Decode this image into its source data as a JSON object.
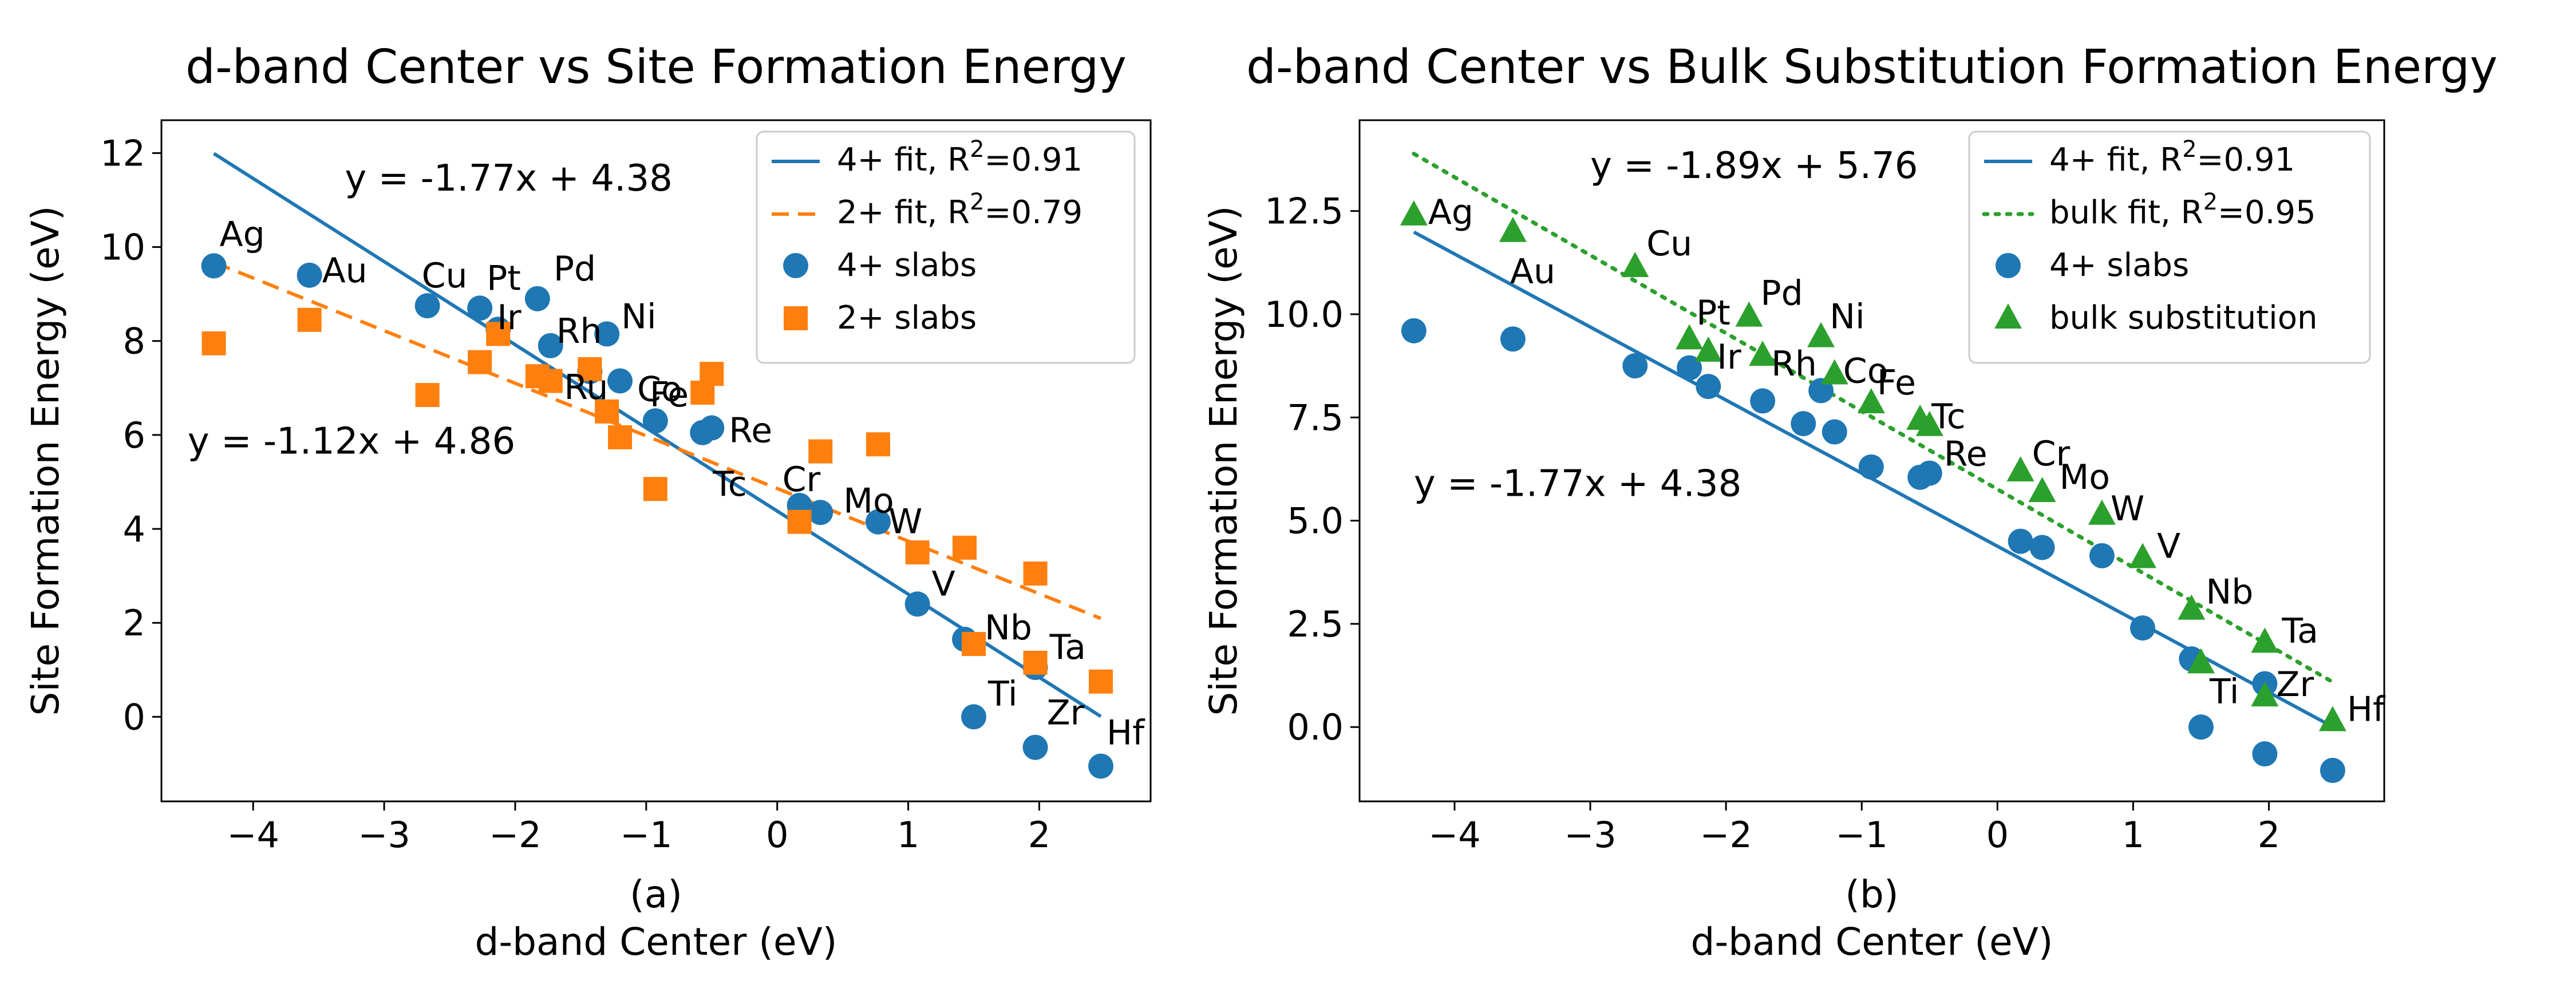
{
  "chart_data": [
    {
      "type": "scatter",
      "title": "d-band Center vs Site Formation Energy",
      "xlabel": "d-band Center (eV)",
      "ylabel": "Site Formation Energy (eV)",
      "sublabel": "(a)",
      "xlim": [
        -4.7,
        2.85
      ],
      "ylim": [
        -1.8,
        12.7
      ],
      "xticks": [
        -4,
        -3,
        -2,
        -1,
        0,
        1,
        2
      ],
      "xtick_labels": [
        "−4",
        "−3",
        "−2",
        "−1",
        "0",
        "1",
        "2"
      ],
      "yticks": [
        0,
        2,
        4,
        6,
        8,
        10,
        12
      ],
      "ytick_labels": [
        "0",
        "2",
        "4",
        "6",
        "8",
        "10",
        "12"
      ],
      "legend_position": "top-right",
      "series": [
        {
          "name": "4+ slabs",
          "marker": "circle",
          "color": "#1f77b4",
          "points": [
            {
              "label": "Ag",
              "x": -4.3,
              "y": 9.6
            },
            {
              "label": "Au",
              "x": -3.57,
              "y": 9.4
            },
            {
              "label": "Cu",
              "x": -2.67,
              "y": 8.75
            },
            {
              "label": "Pt",
              "x": -2.27,
              "y": 8.7
            },
            {
              "label": "Pd",
              "x": -1.83,
              "y": 8.9
            },
            {
              "label": "Ir",
              "x": -2.13,
              "y": 8.25
            },
            {
              "label": "Rh",
              "x": -1.73,
              "y": 7.9
            },
            {
              "label": "Ni",
              "x": -1.3,
              "y": 8.15
            },
            {
              "label": "Ru",
              "x": -1.43,
              "y": 7.35
            },
            {
              "label": "Co",
              "x": -1.2,
              "y": 7.15
            },
            {
              "label": "Fe",
              "x": -0.93,
              "y": 6.3
            },
            {
              "label": "Tc",
              "x": -0.57,
              "y": 6.05
            },
            {
              "label": "Re",
              "x": -0.5,
              "y": 6.15
            },
            {
              "label": "Cr",
              "x": 0.17,
              "y": 4.5
            },
            {
              "label": "Mo",
              "x": 0.33,
              "y": 4.35
            },
            {
              "label": "W",
              "x": 0.77,
              "y": 4.15
            },
            {
              "label": "V",
              "x": 1.07,
              "y": 2.4
            },
            {
              "label": "Nb",
              "x": 1.43,
              "y": 1.65
            },
            {
              "label": "Ti",
              "x": 1.5,
              "y": 0.0
            },
            {
              "label": "Ta",
              "x": 1.97,
              "y": 1.05
            },
            {
              "label": "Zr",
              "x": 1.97,
              "y": -0.65
            },
            {
              "label": "Hf",
              "x": 2.47,
              "y": -1.05
            }
          ]
        },
        {
          "name": "2+ slabs",
          "marker": "square",
          "color": "#ff7f0e",
          "points": [
            {
              "x": -4.3,
              "y": 7.95
            },
            {
              "x": -3.57,
              "y": 8.45
            },
            {
              "x": -2.67,
              "y": 6.85
            },
            {
              "x": -2.27,
              "y": 7.55
            },
            {
              "x": -2.13,
              "y": 8.15
            },
            {
              "x": -1.83,
              "y": 7.25
            },
            {
              "x": -1.73,
              "y": 7.15
            },
            {
              "x": -1.43,
              "y": 7.4
            },
            {
              "x": -1.3,
              "y": 6.5
            },
            {
              "x": -1.2,
              "y": 5.95
            },
            {
              "x": -0.93,
              "y": 4.85
            },
            {
              "x": -0.57,
              "y": 6.9
            },
            {
              "x": -0.5,
              "y": 7.3
            },
            {
              "x": 0.17,
              "y": 4.15
            },
            {
              "x": 0.33,
              "y": 5.65
            },
            {
              "x": 0.77,
              "y": 5.8
            },
            {
              "x": 1.07,
              "y": 3.5
            },
            {
              "x": 1.43,
              "y": 3.6
            },
            {
              "x": 1.5,
              "y": 1.55
            },
            {
              "x": 1.97,
              "y": 1.15
            },
            {
              "x": 1.97,
              "y": 3.05
            },
            {
              "x": 2.47,
              "y": 0.75
            }
          ]
        }
      ],
      "fits": [
        {
          "name": "4+ fit, R²=0.91",
          "legend_main": "4+ fit, R",
          "legend_sup": "2",
          "legend_tail": "=0.91",
          "slope": -1.77,
          "intercept": 4.38,
          "x_range": [
            -4.3,
            2.47
          ],
          "color": "#1f77b4",
          "style": "solid"
        },
        {
          "name": "2+ fit, R²=0.79",
          "legend_main": "2+ fit, R",
          "legend_sup": "2",
          "legend_tail": "=0.79",
          "slope": -1.12,
          "intercept": 4.86,
          "x_range": [
            -4.3,
            2.47
          ],
          "color": "#ff7f0e",
          "style": "dashed"
        }
      ],
      "annotations": [
        {
          "text": "y = -1.77x + 4.38",
          "x": -3.3,
          "y": 11.2
        },
        {
          "text": "y = -1.12x + 4.86",
          "x": -4.5,
          "y": 5.6
        }
      ]
    },
    {
      "type": "scatter",
      "title": "d-band Center vs Bulk Substitution Formation Energy",
      "xlabel": "d-band Center (eV)",
      "ylabel": "Site Formation Energy (eV)",
      "sublabel": "(b)",
      "xlim": [
        -4.7,
        2.85
      ],
      "ylim": [
        -1.8,
        14.7
      ],
      "xticks": [
        -4,
        -3,
        -2,
        -1,
        0,
        1,
        2
      ],
      "xtick_labels": [
        "−4",
        "−3",
        "−2",
        "−1",
        "0",
        "1",
        "2"
      ],
      "yticks": [
        0,
        2.5,
        5,
        7.5,
        10,
        12.5
      ],
      "ytick_labels": [
        "0.0",
        "2.5",
        "5.0",
        "7.5",
        "10.0",
        "12.5"
      ],
      "legend_position": "top-right",
      "series": [
        {
          "name": "4+ slabs",
          "marker": "circle",
          "color": "#1f77b4",
          "points": [
            {
              "x": -4.3,
              "y": 9.6
            },
            {
              "x": -3.57,
              "y": 9.4
            },
            {
              "x": -2.67,
              "y": 8.75
            },
            {
              "x": -2.27,
              "y": 8.7
            },
            {
              "x": -2.13,
              "y": 8.25
            },
            {
              "x": -1.73,
              "y": 7.9
            },
            {
              "x": -1.43,
              "y": 7.35
            },
            {
              "x": -1.3,
              "y": 8.15
            },
            {
              "x": -1.2,
              "y": 7.15
            },
            {
              "x": -0.93,
              "y": 6.3
            },
            {
              "x": -0.57,
              "y": 6.05
            },
            {
              "x": -0.5,
              "y": 6.15
            },
            {
              "x": 0.17,
              "y": 4.5
            },
            {
              "x": 0.33,
              "y": 4.35
            },
            {
              "x": 0.77,
              "y": 4.15
            },
            {
              "x": 1.07,
              "y": 2.4
            },
            {
              "x": 1.43,
              "y": 1.65
            },
            {
              "x": 1.5,
              "y": 0.0
            },
            {
              "x": 1.97,
              "y": 1.05
            },
            {
              "x": 1.97,
              "y": -0.65
            },
            {
              "x": 2.47,
              "y": -1.05
            }
          ]
        },
        {
          "name": "bulk substitution",
          "marker": "triangle",
          "color": "#2ca02c",
          "points": [
            {
              "label": "Ag",
              "x": -4.3,
              "y": 12.4
            },
            {
              "label": "Au",
              "x": -3.57,
              "y": 12.0
            },
            {
              "label": "Cu",
              "x": -2.67,
              "y": 11.15
            },
            {
              "label": "Pt",
              "x": -2.27,
              "y": 9.4
            },
            {
              "label": "Ir",
              "x": -2.13,
              "y": 9.1
            },
            {
              "label": "Pd",
              "x": -1.83,
              "y": 9.95
            },
            {
              "label": "Rh",
              "x": -1.73,
              "y": 9.0
            },
            {
              "label": "Ni",
              "x": -1.3,
              "y": 9.45
            },
            {
              "label": "Co",
              "x": -1.2,
              "y": 8.55
            },
            {
              "label": "Fe",
              "x": -0.93,
              "y": 7.85
            },
            {
              "label": "Tc",
              "x": -0.57,
              "y": 7.45
            },
            {
              "label": "Re",
              "x": -0.5,
              "y": 7.3
            },
            {
              "label": "Cr",
              "x": 0.17,
              "y": 6.2
            },
            {
              "label": "Mo",
              "x": 0.33,
              "y": 5.7
            },
            {
              "label": "W",
              "x": 0.77,
              "y": 5.15
            },
            {
              "label": "V",
              "x": 1.07,
              "y": 4.1
            },
            {
              "label": "Nb",
              "x": 1.43,
              "y": 2.85
            },
            {
              "label": "Ti",
              "x": 1.5,
              "y": 1.55
            },
            {
              "label": "Ta",
              "x": 1.97,
              "y": 2.05
            },
            {
              "label": "Zr",
              "x": 1.97,
              "y": 0.75
            },
            {
              "label": "Hf",
              "x": 2.47,
              "y": 0.15
            }
          ]
        }
      ],
      "fits": [
        {
          "name": "4+ fit, R²=0.91",
          "legend_main": "4+ fit, R",
          "legend_sup": "2",
          "legend_tail": "=0.91",
          "slope": -1.77,
          "intercept": 4.38,
          "x_range": [
            -4.3,
            2.47
          ],
          "color": "#1f77b4",
          "style": "solid"
        },
        {
          "name": "bulk fit, R²=0.95",
          "legend_main": "bulk fit, R",
          "legend_sup": "2",
          "legend_tail": "=0.95",
          "slope": -1.89,
          "intercept": 5.76,
          "x_range": [
            -4.3,
            2.47
          ],
          "color": "#2ca02c",
          "style": "dotted"
        }
      ],
      "annotations": [
        {
          "text": "y = -1.89x + 5.76",
          "x": -3.0,
          "y": 13.3
        },
        {
          "text": "y = -1.77x + 4.38",
          "x": -4.3,
          "y": 5.6
        }
      ]
    }
  ]
}
